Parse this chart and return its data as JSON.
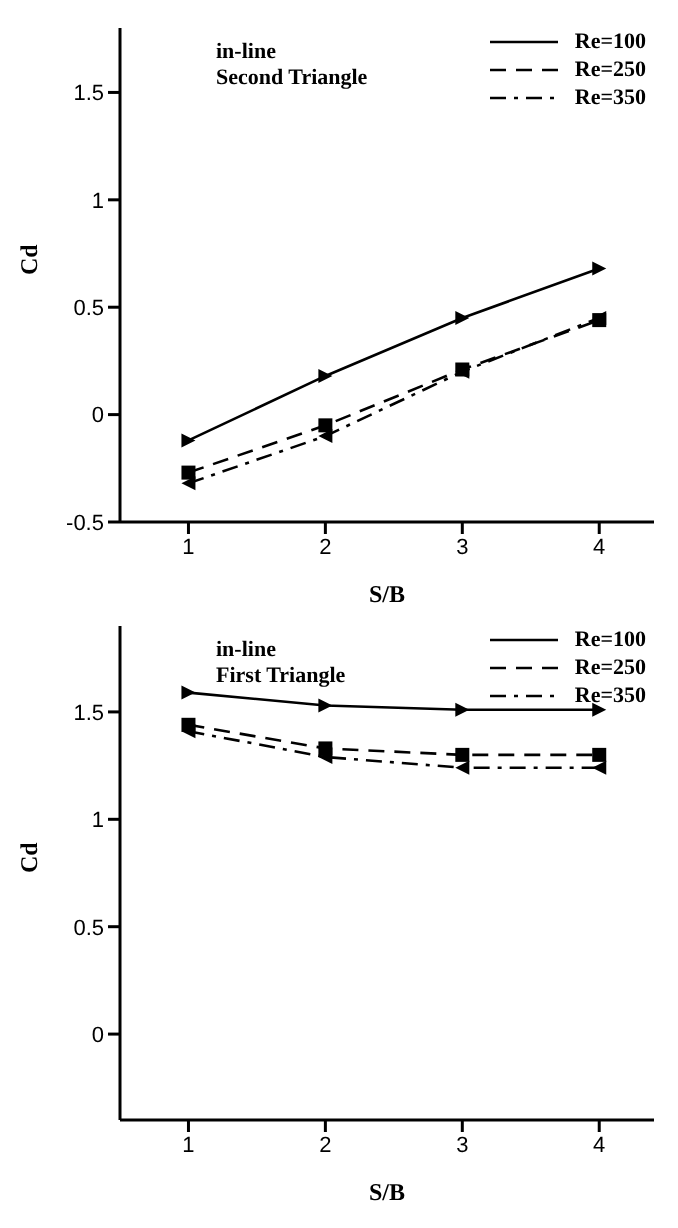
{
  "chart_data": [
    {
      "type": "line",
      "xlabel": "S/B",
      "ylabel": "Cd",
      "annotations": [
        "in-line",
        "Second Triangle"
      ],
      "x": [
        1,
        2,
        3,
        4
      ],
      "xlim": [
        0.5,
        4.4
      ],
      "xticks": [
        1,
        2,
        3,
        4
      ],
      "ylim": [
        -0.5,
        1.8
      ],
      "yticks": [
        -0.5,
        0,
        0.5,
        1,
        1.5
      ],
      "legend": "top right",
      "grid": false,
      "series": [
        {
          "name": "Re=100",
          "color": "#000000",
          "marker": "triangle-right",
          "line_style": "solid",
          "values": [
            -0.12,
            0.18,
            0.45,
            0.68
          ]
        },
        {
          "name": "Re=250",
          "color": "#000000",
          "marker": "square",
          "line_style": "dashed",
          "values": [
            -0.27,
            -0.05,
            0.21,
            0.44
          ]
        },
        {
          "name": "Re=350",
          "color": "#000000",
          "marker": "triangle-left",
          "line_style": "dashdot",
          "values": [
            -0.32,
            -0.1,
            0.2,
            0.45
          ]
        }
      ]
    },
    {
      "type": "line",
      "xlabel": "S/B",
      "ylabel": "Cd",
      "annotations": [
        "in-line",
        "First Triangle"
      ],
      "x": [
        1,
        2,
        3,
        4
      ],
      "xlim": [
        0.5,
        4.4
      ],
      "xticks": [
        1,
        2,
        3,
        4
      ],
      "ylim": [
        -0.4,
        1.9
      ],
      "yticks": [
        0,
        0.5,
        1,
        1.5
      ],
      "legend": "top right",
      "grid": false,
      "series": [
        {
          "name": "Re=100",
          "color": "#000000",
          "marker": "triangle-right",
          "line_style": "solid",
          "values": [
            1.59,
            1.53,
            1.51,
            1.51
          ]
        },
        {
          "name": "Re=250",
          "color": "#000000",
          "marker": "square",
          "line_style": "dashed",
          "values": [
            1.44,
            1.33,
            1.3,
            1.3
          ]
        },
        {
          "name": "Re=350",
          "color": "#000000",
          "marker": "triangle-left",
          "line_style": "dashdot",
          "values": [
            1.41,
            1.29,
            1.24,
            1.24
          ]
        }
      ]
    }
  ]
}
